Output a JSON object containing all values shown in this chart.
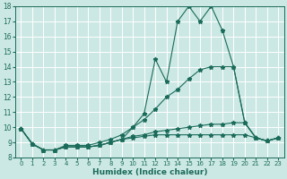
{
  "xlabel": "Humidex (Indice chaleur)",
  "bg_color": "#cce8e4",
  "line_color": "#1a6b5a",
  "grid_color": "#ffffff",
  "xmin": 0,
  "xmax": 23,
  "ymin": 8,
  "ymax": 18,
  "line1_x": [
    0,
    1,
    2,
    3,
    4,
    5,
    6,
    7,
    8,
    9,
    10,
    11,
    12,
    13,
    14,
    15,
    16,
    17,
    18,
    19,
    20,
    21,
    22,
    23
  ],
  "line1_y": [
    9.9,
    8.9,
    8.5,
    8.5,
    8.7,
    8.7,
    8.7,
    8.8,
    9.0,
    9.2,
    10.0,
    10.9,
    14.5,
    13.0,
    17.0,
    18.0,
    17.0,
    18.0,
    16.4,
    14.0,
    10.3,
    9.3,
    9.1,
    9.3
  ],
  "line2_x": [
    0,
    1,
    2,
    3,
    4,
    5,
    6,
    7,
    8,
    9,
    10,
    11,
    12,
    13,
    14,
    15,
    16,
    17,
    18,
    19,
    20,
    21,
    22,
    23
  ],
  "line2_y": [
    9.9,
    8.9,
    8.5,
    8.5,
    8.8,
    8.8,
    8.8,
    9.0,
    9.2,
    9.5,
    10.0,
    10.5,
    11.2,
    12.0,
    12.5,
    13.2,
    13.8,
    14.0,
    14.0,
    14.0,
    10.3,
    9.3,
    9.1,
    9.3
  ],
  "line3_x": [
    0,
    1,
    2,
    3,
    4,
    5,
    6,
    7,
    8,
    9,
    10,
    11,
    12,
    13,
    14,
    15,
    16,
    17,
    18,
    19,
    20,
    21,
    22,
    23
  ],
  "line3_y": [
    9.9,
    8.9,
    8.5,
    8.5,
    8.7,
    8.7,
    8.7,
    8.8,
    9.0,
    9.2,
    9.4,
    9.5,
    9.7,
    9.8,
    9.9,
    10.0,
    10.1,
    10.2,
    10.2,
    10.3,
    10.3,
    9.3,
    9.1,
    9.3
  ],
  "line4_x": [
    0,
    1,
    2,
    3,
    4,
    5,
    6,
    7,
    8,
    9,
    10,
    11,
    12,
    13,
    14,
    15,
    16,
    17,
    18,
    19,
    20,
    21,
    22,
    23
  ],
  "line4_y": [
    9.9,
    8.9,
    8.5,
    8.5,
    8.7,
    8.7,
    8.7,
    8.8,
    9.0,
    9.2,
    9.3,
    9.4,
    9.5,
    9.5,
    9.5,
    9.5,
    9.5,
    9.5,
    9.5,
    9.5,
    9.5,
    9.3,
    9.1,
    9.3
  ]
}
